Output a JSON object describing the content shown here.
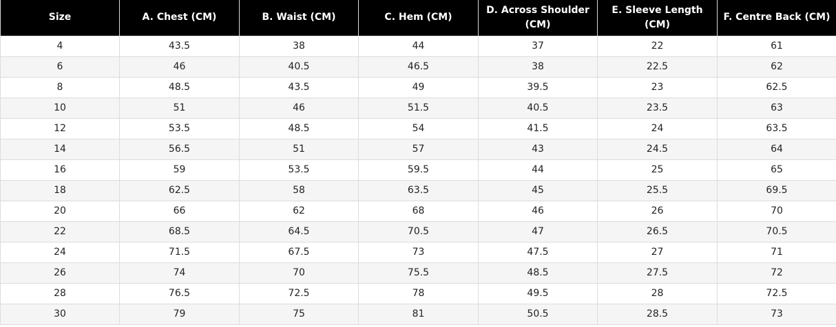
{
  "table": {
    "headers": [
      "Size",
      "A. Chest (CM)",
      "B. Waist (CM)",
      "C. Hem (CM)",
      "D. Across Shoulder (CM)",
      "E. Sleeve Length (CM)",
      "F. Centre Back (CM)"
    ],
    "rows": [
      [
        "4",
        "43.5",
        "38",
        "44",
        "37",
        "22",
        "61"
      ],
      [
        "6",
        "46",
        "40.5",
        "46.5",
        "38",
        "22.5",
        "62"
      ],
      [
        "8",
        "48.5",
        "43.5",
        "49",
        "39.5",
        "23",
        "62.5"
      ],
      [
        "10",
        "51",
        "46",
        "51.5",
        "40.5",
        "23.5",
        "63"
      ],
      [
        "12",
        "53.5",
        "48.5",
        "54",
        "41.5",
        "24",
        "63.5"
      ],
      [
        "14",
        "56.5",
        "51",
        "57",
        "43",
        "24.5",
        "64"
      ],
      [
        "16",
        "59",
        "53.5",
        "59.5",
        "44",
        "25",
        "65"
      ],
      [
        "18",
        "62.5",
        "58",
        "63.5",
        "45",
        "25.5",
        "69.5"
      ],
      [
        "20",
        "66",
        "62",
        "68",
        "46",
        "26",
        "70"
      ],
      [
        "22",
        "68.5",
        "64.5",
        "70.5",
        "47",
        "26.5",
        "70.5"
      ],
      [
        "24",
        "71.5",
        "67.5",
        "73",
        "47.5",
        "27",
        "71"
      ],
      [
        "26",
        "74",
        "70",
        "75.5",
        "48.5",
        "27.5",
        "72"
      ],
      [
        "28",
        "76.5",
        "72.5",
        "78",
        "49.5",
        "28",
        "72.5"
      ],
      [
        "30",
        "79",
        "75",
        "81",
        "50.5",
        "28.5",
        "73"
      ]
    ]
  }
}
